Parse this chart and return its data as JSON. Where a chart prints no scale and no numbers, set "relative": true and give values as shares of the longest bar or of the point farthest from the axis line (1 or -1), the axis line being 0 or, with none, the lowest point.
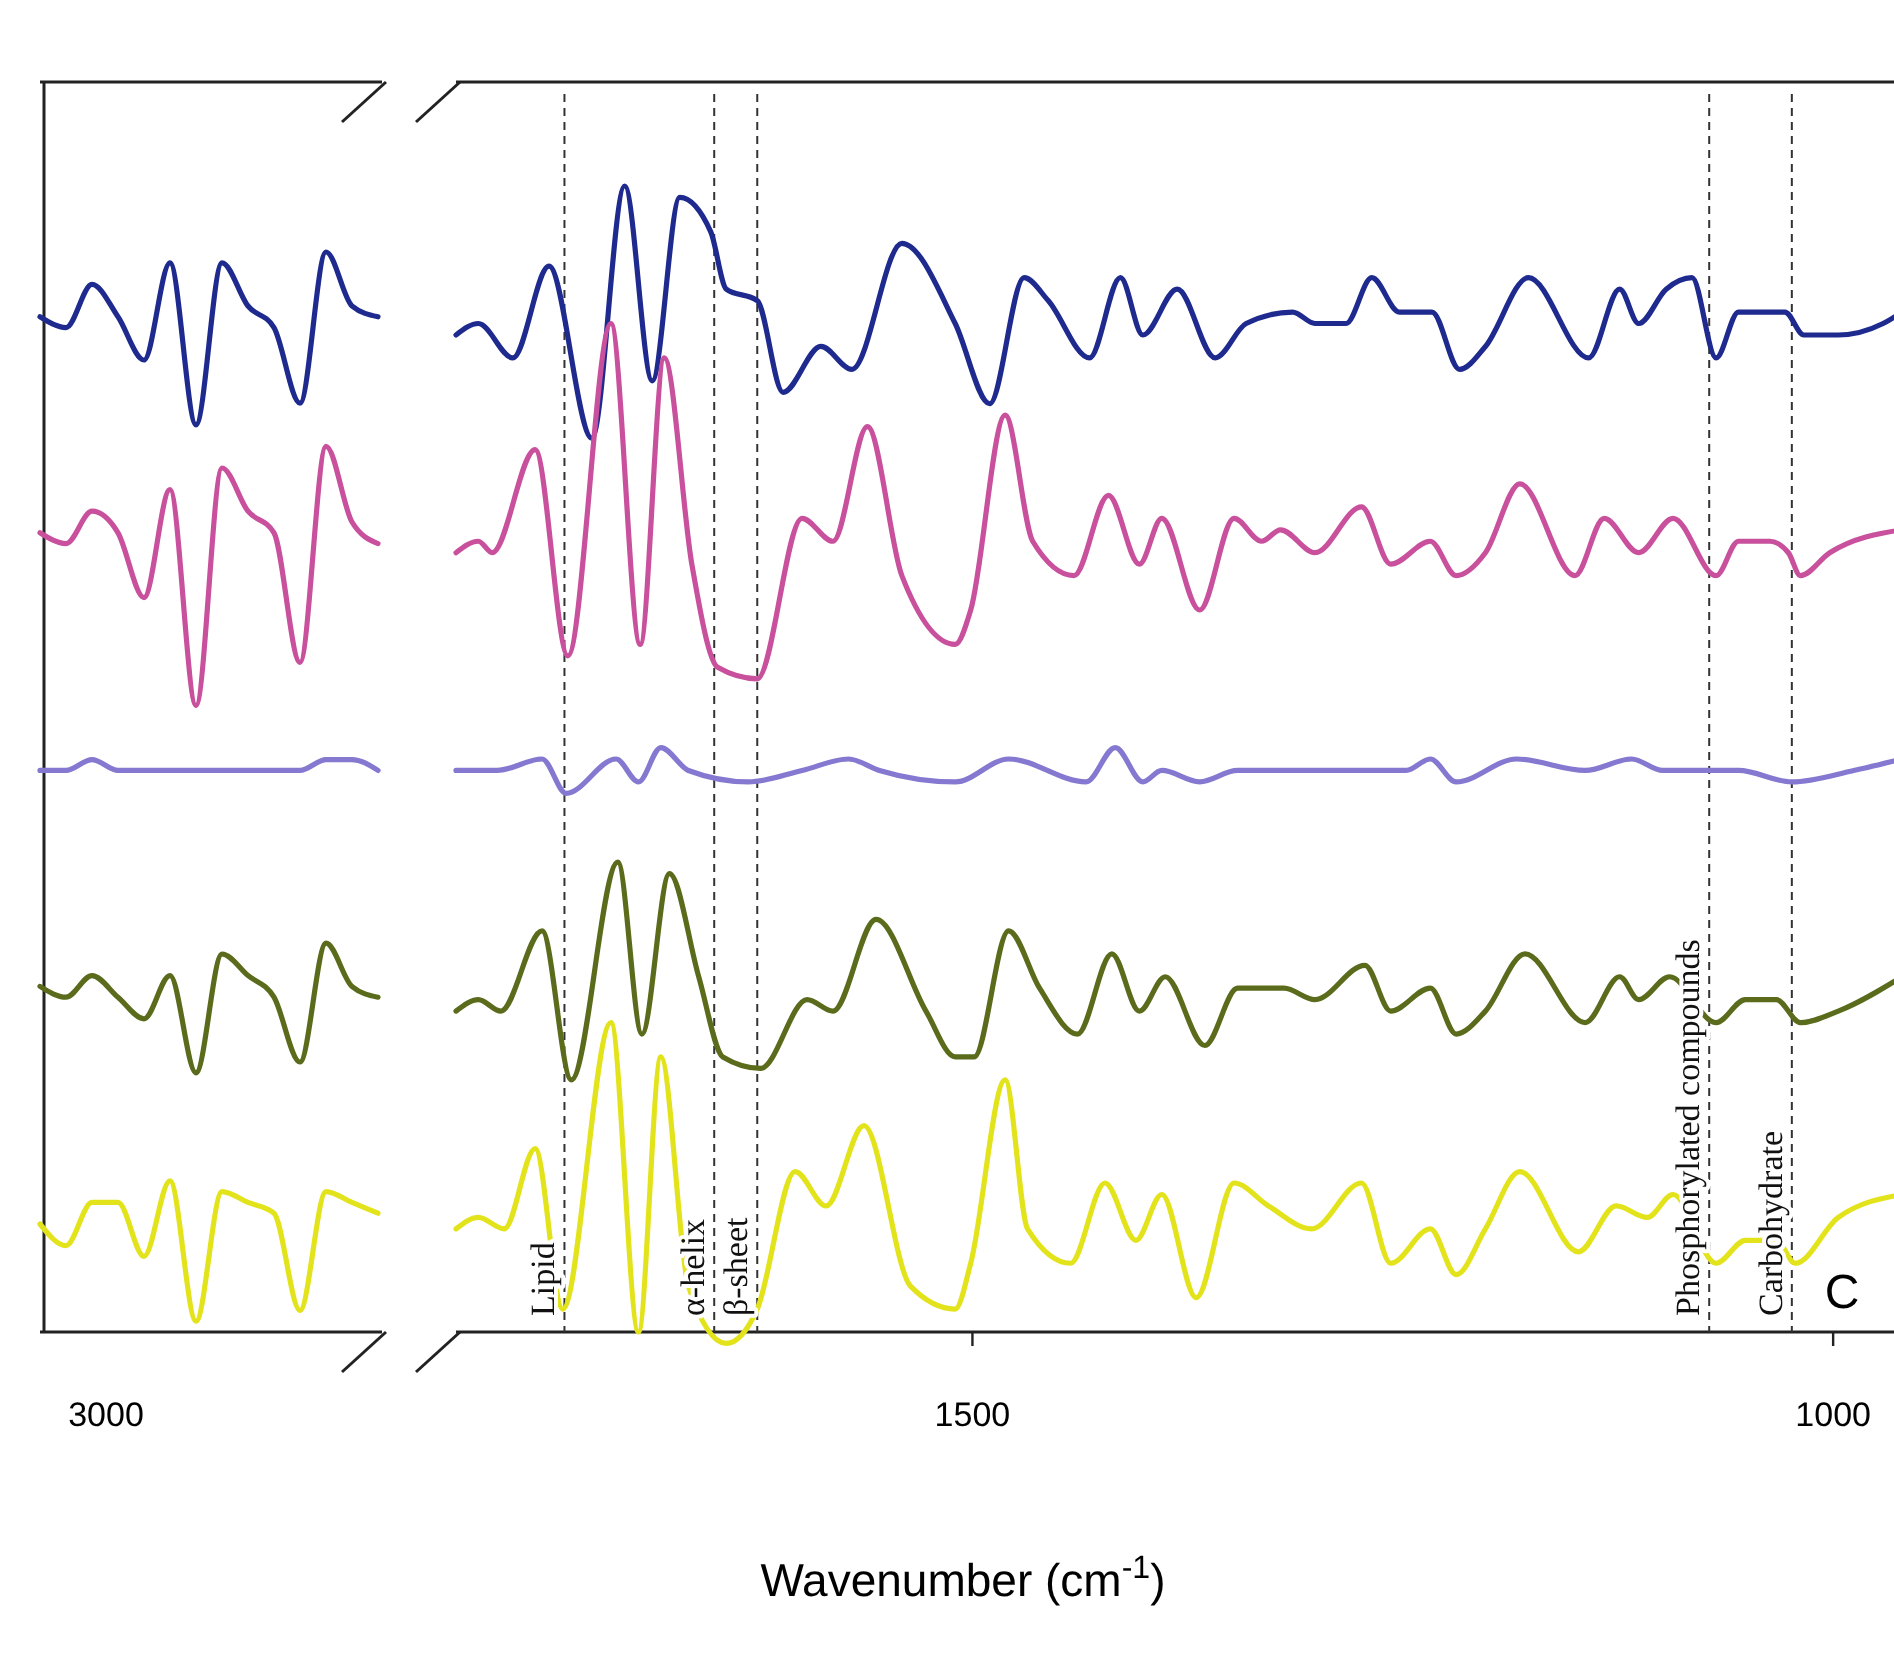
{
  "chart_data": [
    {
      "type": "line",
      "relative": true,
      "annotations": [
        "3000"
      ],
      "categories": [
        null,
        null,
        null,
        null,
        null,
        null,
        null,
        null,
        null,
        null,
        null,
        null,
        null,
        null
      ],
      "series": [
        {
          "color": "#1f2a8f",
          "values": [
            0.94,
            0.93,
            0.97,
            0.94,
            0.9,
            0.99,
            0.84,
            0.99,
            0.95,
            0.93,
            0.86,
            1.0,
            0.95,
            0.94
          ]
        },
        {
          "color": "#c8509c",
          "values": [
            0.74,
            0.73,
            0.76,
            0.74,
            0.68,
            0.78,
            0.58,
            0.8,
            0.76,
            0.74,
            0.62,
            0.82,
            0.75,
            0.73
          ]
        },
        {
          "color": "#8478d0",
          "values": [
            0.52,
            0.52,
            0.53,
            0.52,
            0.52,
            0.52,
            0.52,
            0.52,
            0.52,
            0.52,
            0.52,
            0.53,
            0.53,
            0.52
          ]
        },
        {
          "color": "#5a6b1c",
          "values": [
            0.32,
            0.31,
            0.33,
            0.31,
            0.29,
            0.33,
            0.24,
            0.35,
            0.33,
            0.31,
            0.25,
            0.36,
            0.32,
            0.31
          ]
        },
        {
          "color": "#e3e31c",
          "values": [
            0.1,
            0.08,
            0.12,
            0.12,
            0.07,
            0.14,
            0.01,
            0.13,
            0.12,
            0.11,
            0.02,
            0.13,
            0.12,
            0.11
          ]
        }
      ]
    },
    {
      "type": "line",
      "relative": true,
      "xlim": [
        1800,
        960
      ],
      "xticks": [
        1500,
        1000
      ],
      "xlabel": "Wavenumber (cm$^{-1}$)",
      "annotations": [
        "C"
      ],
      "ref_lines": [
        {
          "axis": "x",
          "value": 1737,
          "label": "Lipid",
          "line_style": "dashed",
          "color": "#333333"
        },
        {
          "axis": "x",
          "value": 1650,
          "label": "α-helix",
          "line_style": "dashed",
          "color": "#333333"
        },
        {
          "axis": "x",
          "value": 1625,
          "label": "β-sheet",
          "line_style": "dashed",
          "color": "#333333"
        },
        {
          "axis": "x",
          "value": 1072,
          "label": "Phosphorylated compounds",
          "line_style": "dashed",
          "color": "#333333"
        },
        {
          "axis": "x",
          "value": 1024,
          "label": "Carbohydrate",
          "line_style": "dashed",
          "color": "#333333"
        }
      ],
      "series": [
        {
          "color": "#1f2a8f",
          "x": [
            1800,
            1787,
            1767,
            1746,
            1721,
            1702,
            1686,
            1670,
            1652,
            1643,
            1625,
            1610,
            1588,
            1570,
            1541,
            1510,
            1490,
            1470,
            1456,
            1432,
            1414,
            1401,
            1381,
            1359,
            1341,
            1314,
            1301,
            1283,
            1268,
            1252,
            1233,
            1217,
            1202,
            1177,
            1142,
            1124,
            1113,
            1097,
            1082,
            1068,
            1055,
            1028,
            1017,
            997,
            971,
            960
          ],
          "values": [
            0.87,
            0.88,
            0.85,
            0.93,
            0.78,
            1.0,
            0.83,
            0.99,
            0.96,
            0.91,
            0.9,
            0.82,
            0.86,
            0.84,
            0.95,
            0.88,
            0.81,
            0.92,
            0.9,
            0.85,
            0.92,
            0.87,
            0.91,
            0.85,
            0.88,
            0.89,
            0.88,
            0.88,
            0.92,
            0.89,
            0.89,
            0.84,
            0.86,
            0.92,
            0.85,
            0.91,
            0.88,
            0.91,
            0.92,
            0.85,
            0.89,
            0.89,
            0.87,
            0.87,
            0.88,
            0.89
          ]
        },
        {
          "color": "#c8509c",
          "x": [
            1800,
            1787,
            1779,
            1754,
            1735,
            1710,
            1693,
            1679,
            1663,
            1648,
            1625,
            1599,
            1581,
            1561,
            1541,
            1510,
            1501,
            1481,
            1465,
            1441,
            1421,
            1403,
            1390,
            1368,
            1348,
            1332,
            1321,
            1301,
            1274,
            1257,
            1234,
            1219,
            1202,
            1182,
            1150,
            1133,
            1113,
            1093,
            1068,
            1055,
            1037,
            1026,
            1019,
            1002,
            960
          ],
          "values": [
            0.68,
            0.69,
            0.68,
            0.77,
            0.59,
            0.88,
            0.6,
            0.85,
            0.67,
            0.58,
            0.57,
            0.71,
            0.69,
            0.79,
            0.66,
            0.6,
            0.63,
            0.8,
            0.69,
            0.66,
            0.73,
            0.67,
            0.71,
            0.63,
            0.71,
            0.69,
            0.7,
            0.68,
            0.72,
            0.67,
            0.69,
            0.66,
            0.68,
            0.74,
            0.66,
            0.71,
            0.68,
            0.71,
            0.66,
            0.69,
            0.69,
            0.68,
            0.66,
            0.68,
            0.7
          ]
        },
        {
          "color": "#8478d0",
          "x": [
            1800,
            1776,
            1750,
            1736,
            1707,
            1694,
            1681,
            1665,
            1630,
            1599,
            1572,
            1554,
            1510,
            1479,
            1434,
            1417,
            1401,
            1390,
            1368,
            1346,
            1301,
            1270,
            1248,
            1234,
            1219,
            1184,
            1144,
            1117,
            1099,
            1071,
            1055,
            1024,
            988,
            960
          ],
          "values": [
            0.49,
            0.49,
            0.5,
            0.47,
            0.5,
            0.48,
            0.51,
            0.49,
            0.48,
            0.49,
            0.5,
            0.49,
            0.48,
            0.5,
            0.48,
            0.51,
            0.48,
            0.49,
            0.48,
            0.49,
            0.49,
            0.49,
            0.49,
            0.5,
            0.48,
            0.5,
            0.49,
            0.5,
            0.49,
            0.49,
            0.49,
            0.48,
            0.49,
            0.5
          ]
        },
        {
          "color": "#5a6b1c",
          "x": [
            1800,
            1787,
            1774,
            1750,
            1733,
            1706,
            1692,
            1676,
            1659,
            1645,
            1623,
            1596,
            1581,
            1556,
            1527,
            1510,
            1499,
            1479,
            1461,
            1439,
            1419,
            1403,
            1388,
            1365,
            1346,
            1328,
            1319,
            1301,
            1272,
            1257,
            1234,
            1219,
            1202,
            1179,
            1144,
            1124,
            1113,
            1095,
            1068,
            1051,
            1033,
            1019,
            997,
            960
          ],
          "values": [
            0.28,
            0.29,
            0.28,
            0.35,
            0.22,
            0.41,
            0.26,
            0.4,
            0.31,
            0.24,
            0.23,
            0.29,
            0.28,
            0.36,
            0.28,
            0.24,
            0.24,
            0.35,
            0.3,
            0.26,
            0.33,
            0.28,
            0.31,
            0.25,
            0.3,
            0.3,
            0.3,
            0.29,
            0.32,
            0.28,
            0.3,
            0.26,
            0.28,
            0.33,
            0.27,
            0.31,
            0.29,
            0.31,
            0.27,
            0.29,
            0.29,
            0.27,
            0.28,
            0.31
          ]
        },
        {
          "color": "#e3e31c",
          "x": [
            1800,
            1787,
            1772,
            1754,
            1738,
            1710,
            1694,
            1681,
            1665,
            1643,
            1625,
            1603,
            1585,
            1563,
            1536,
            1510,
            1501,
            1481,
            1468,
            1443,
            1423,
            1405,
            1390,
            1370,
            1348,
            1328,
            1303,
            1274,
            1257,
            1234,
            1219,
            1202,
            1182,
            1148,
            1126,
            1108,
            1093,
            1068,
            1051,
            1033,
            1022,
            997,
            960
          ],
          "values": [
            0.09,
            0.1,
            0.09,
            0.16,
            0.02,
            0.27,
            0.0,
            0.24,
            0.04,
            -0.01,
            0.02,
            0.14,
            0.11,
            0.18,
            0.04,
            0.02,
            0.06,
            0.22,
            0.09,
            0.06,
            0.13,
            0.08,
            0.12,
            0.03,
            0.13,
            0.11,
            0.09,
            0.13,
            0.06,
            0.09,
            0.05,
            0.09,
            0.14,
            0.07,
            0.11,
            0.1,
            0.12,
            0.06,
            0.08,
            0.08,
            0.06,
            0.1,
            0.12
          ]
        }
      ]
    }
  ]
}
